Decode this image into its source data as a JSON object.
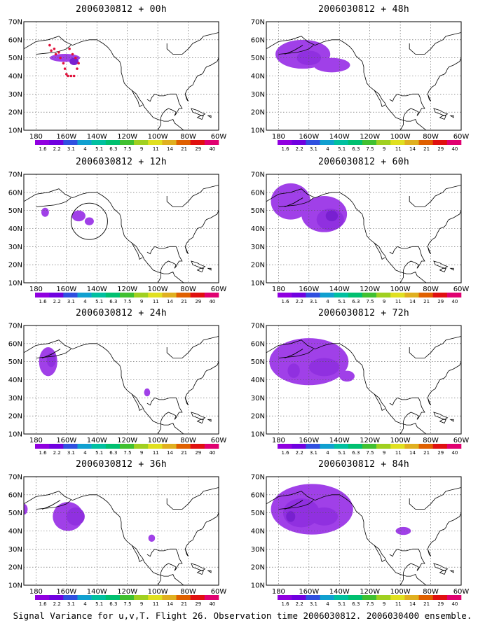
{
  "figure": {
    "caption": "Signal Variance for u,v,T. Flight 26. Observation time 2006030812. 2006030400 ensemble."
  },
  "map": {
    "lat_labels": [
      "70N",
      "60N",
      "50N",
      "40N",
      "30N",
      "20N",
      "10N"
    ],
    "lon_labels": [
      "180",
      "160W",
      "140W",
      "120W",
      "100W",
      "80W",
      "60W"
    ],
    "grid": "dotted"
  },
  "colorbar": {
    "levels": [
      "1.6",
      "2.2",
      "3.1",
      "4",
      "5.1",
      "6.3",
      "7.5",
      "9",
      "11",
      "14",
      "21",
      "29",
      "40"
    ],
    "colors": [
      "#9000e0",
      "#7000e0",
      "#3050e0",
      "#10a0d0",
      "#00c0a0",
      "#00c070",
      "#40c030",
      "#a0d020",
      "#e0e020",
      "#e0b020",
      "#e06000",
      "#e01010",
      "#e00070"
    ]
  },
  "shading_colors": {
    "light": "#a040e8",
    "medium": "#9030e0",
    "dark": "#7820d0"
  },
  "panels": [
    {
      "title": "2006030812 + 00h"
    },
    {
      "title": "2006030812 + 48h"
    },
    {
      "title": "2006030812 + 12h"
    },
    {
      "title": "2006030812 + 60h"
    },
    {
      "title": "2006030812 + 24h"
    },
    {
      "title": "2006030812 + 72h"
    },
    {
      "title": "2006030812 + 36h"
    },
    {
      "title": "2006030812 + 84h"
    }
  ]
}
